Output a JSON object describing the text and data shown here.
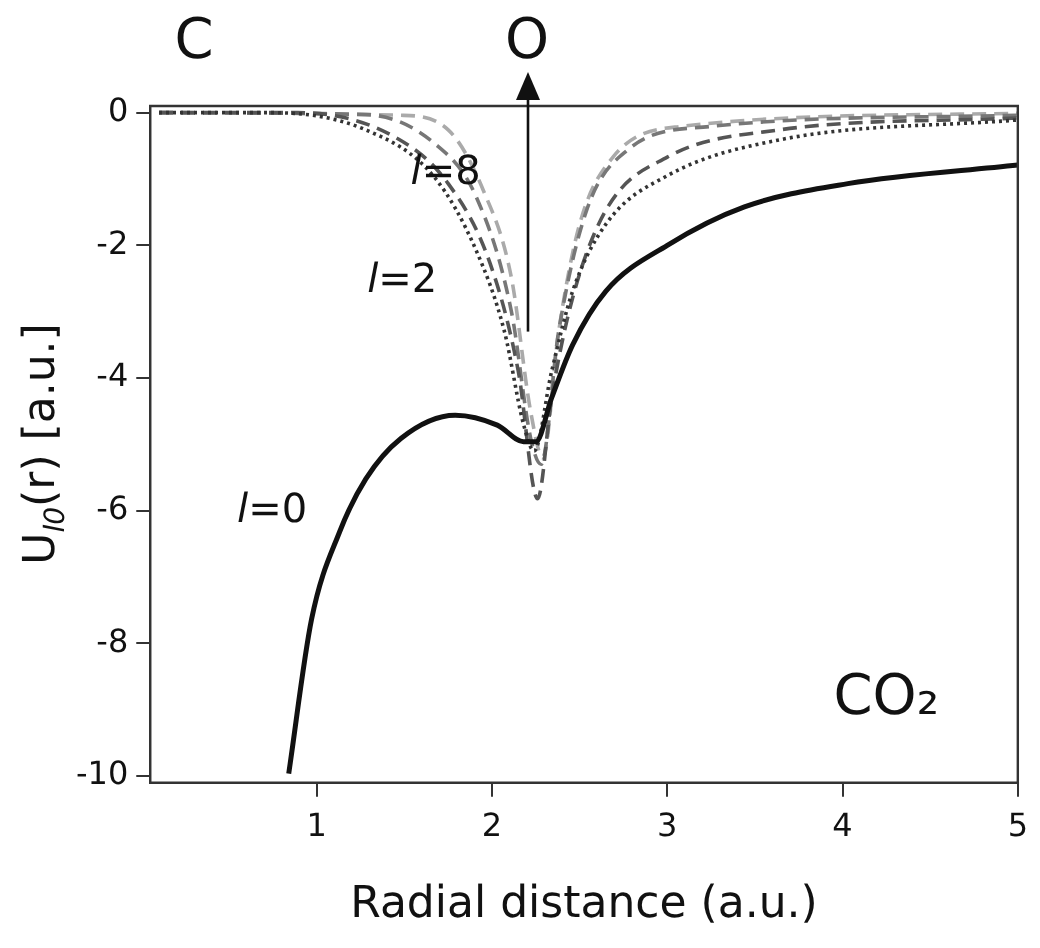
{
  "chart_data": {
    "type": "line",
    "xlabel": "Radial distance (a.u.)",
    "ylabel": "U$_{l0}$(r)  [a.u.]",
    "xlim": [
      0.05,
      5
    ],
    "ylim": [
      -10.1,
      0.1
    ],
    "xticks": [
      1,
      2,
      3,
      4,
      5
    ],
    "yticks": [
      0,
      -2,
      -4,
      -6,
      -8,
      -10
    ],
    "grid": false,
    "legend": false,
    "marker": "none",
    "annotations": [
      "C",
      {
        "text": "O",
        "x": 2.2,
        "y": -3.3
      },
      "CO₂"
    ],
    "series": [
      {
        "name": "l=0",
        "color": "#111111",
        "line_style": "solid",
        "x": [
          0.84,
          0.97,
          1.13,
          1.28,
          1.48,
          1.79,
          2.03,
          2.18,
          2.25,
          2.34,
          2.46,
          2.65,
          3,
          3.44,
          4.03,
          5
        ],
        "values": [
          -9.96,
          -7.64,
          -6.32,
          -5.52,
          -4.91,
          -4.56,
          -4.71,
          -4.96,
          -4.96,
          -4.3,
          -3.5,
          -2.69,
          -2,
          -1.42,
          -1.07,
          -0.79
        ]
      },
      {
        "name": "l=2",
        "color": "#333333",
        "line_style": "dotted",
        "x": [
          0.1,
          0.73,
          1.28,
          1.67,
          1.91,
          2.07,
          2.18,
          2.24,
          2.34,
          2.46,
          2.65,
          3,
          3.64,
          5
        ],
        "values": [
          0,
          0,
          -0.26,
          -0.97,
          -2.08,
          -3.29,
          -4.7,
          -5.1,
          -3.9,
          -2.69,
          -1.68,
          -0.95,
          -0.41,
          -0.11
        ]
      },
      {
        "color": "#555555",
        "line_style": "dashed",
        "x": [
          0.1,
          0.89,
          1.44,
          1.75,
          1.99,
          2.15,
          2.26,
          2.34,
          2.46,
          2.65,
          3,
          3.64,
          5
        ],
        "values": [
          0,
          0,
          -0.36,
          -1.07,
          -2.28,
          -3.9,
          -5.82,
          -4.3,
          -2.79,
          -1.47,
          -0.67,
          -0.26,
          -0.08
        ]
      },
      {
        "color": "#777777",
        "line_style": "dashed",
        "x": [
          0.1,
          1.28,
          1.67,
          1.91,
          2.11,
          2.22,
          2.28,
          2.38,
          2.54,
          2.77,
          3.24,
          5
        ],
        "values": [
          0,
          -0.03,
          -0.46,
          -1.27,
          -2.99,
          -4.9,
          -5.3,
          -3.3,
          -1.47,
          -0.57,
          -0.21,
          -0.04
        ]
      },
      {
        "name": "l=8",
        "color": "#aaaaaa",
        "line_style": "dashed",
        "x": [
          0.1,
          1.48,
          1.75,
          1.95,
          2.11,
          2.22,
          2.29,
          2.38,
          2.5,
          2.69,
          3.07,
          5
        ],
        "values": [
          0,
          -0.04,
          -0.26,
          -1.17,
          -2.48,
          -4.5,
          -5.2,
          -3.3,
          -1.68,
          -0.67,
          -0.21,
          -0.01
        ]
      }
    ]
  }
}
